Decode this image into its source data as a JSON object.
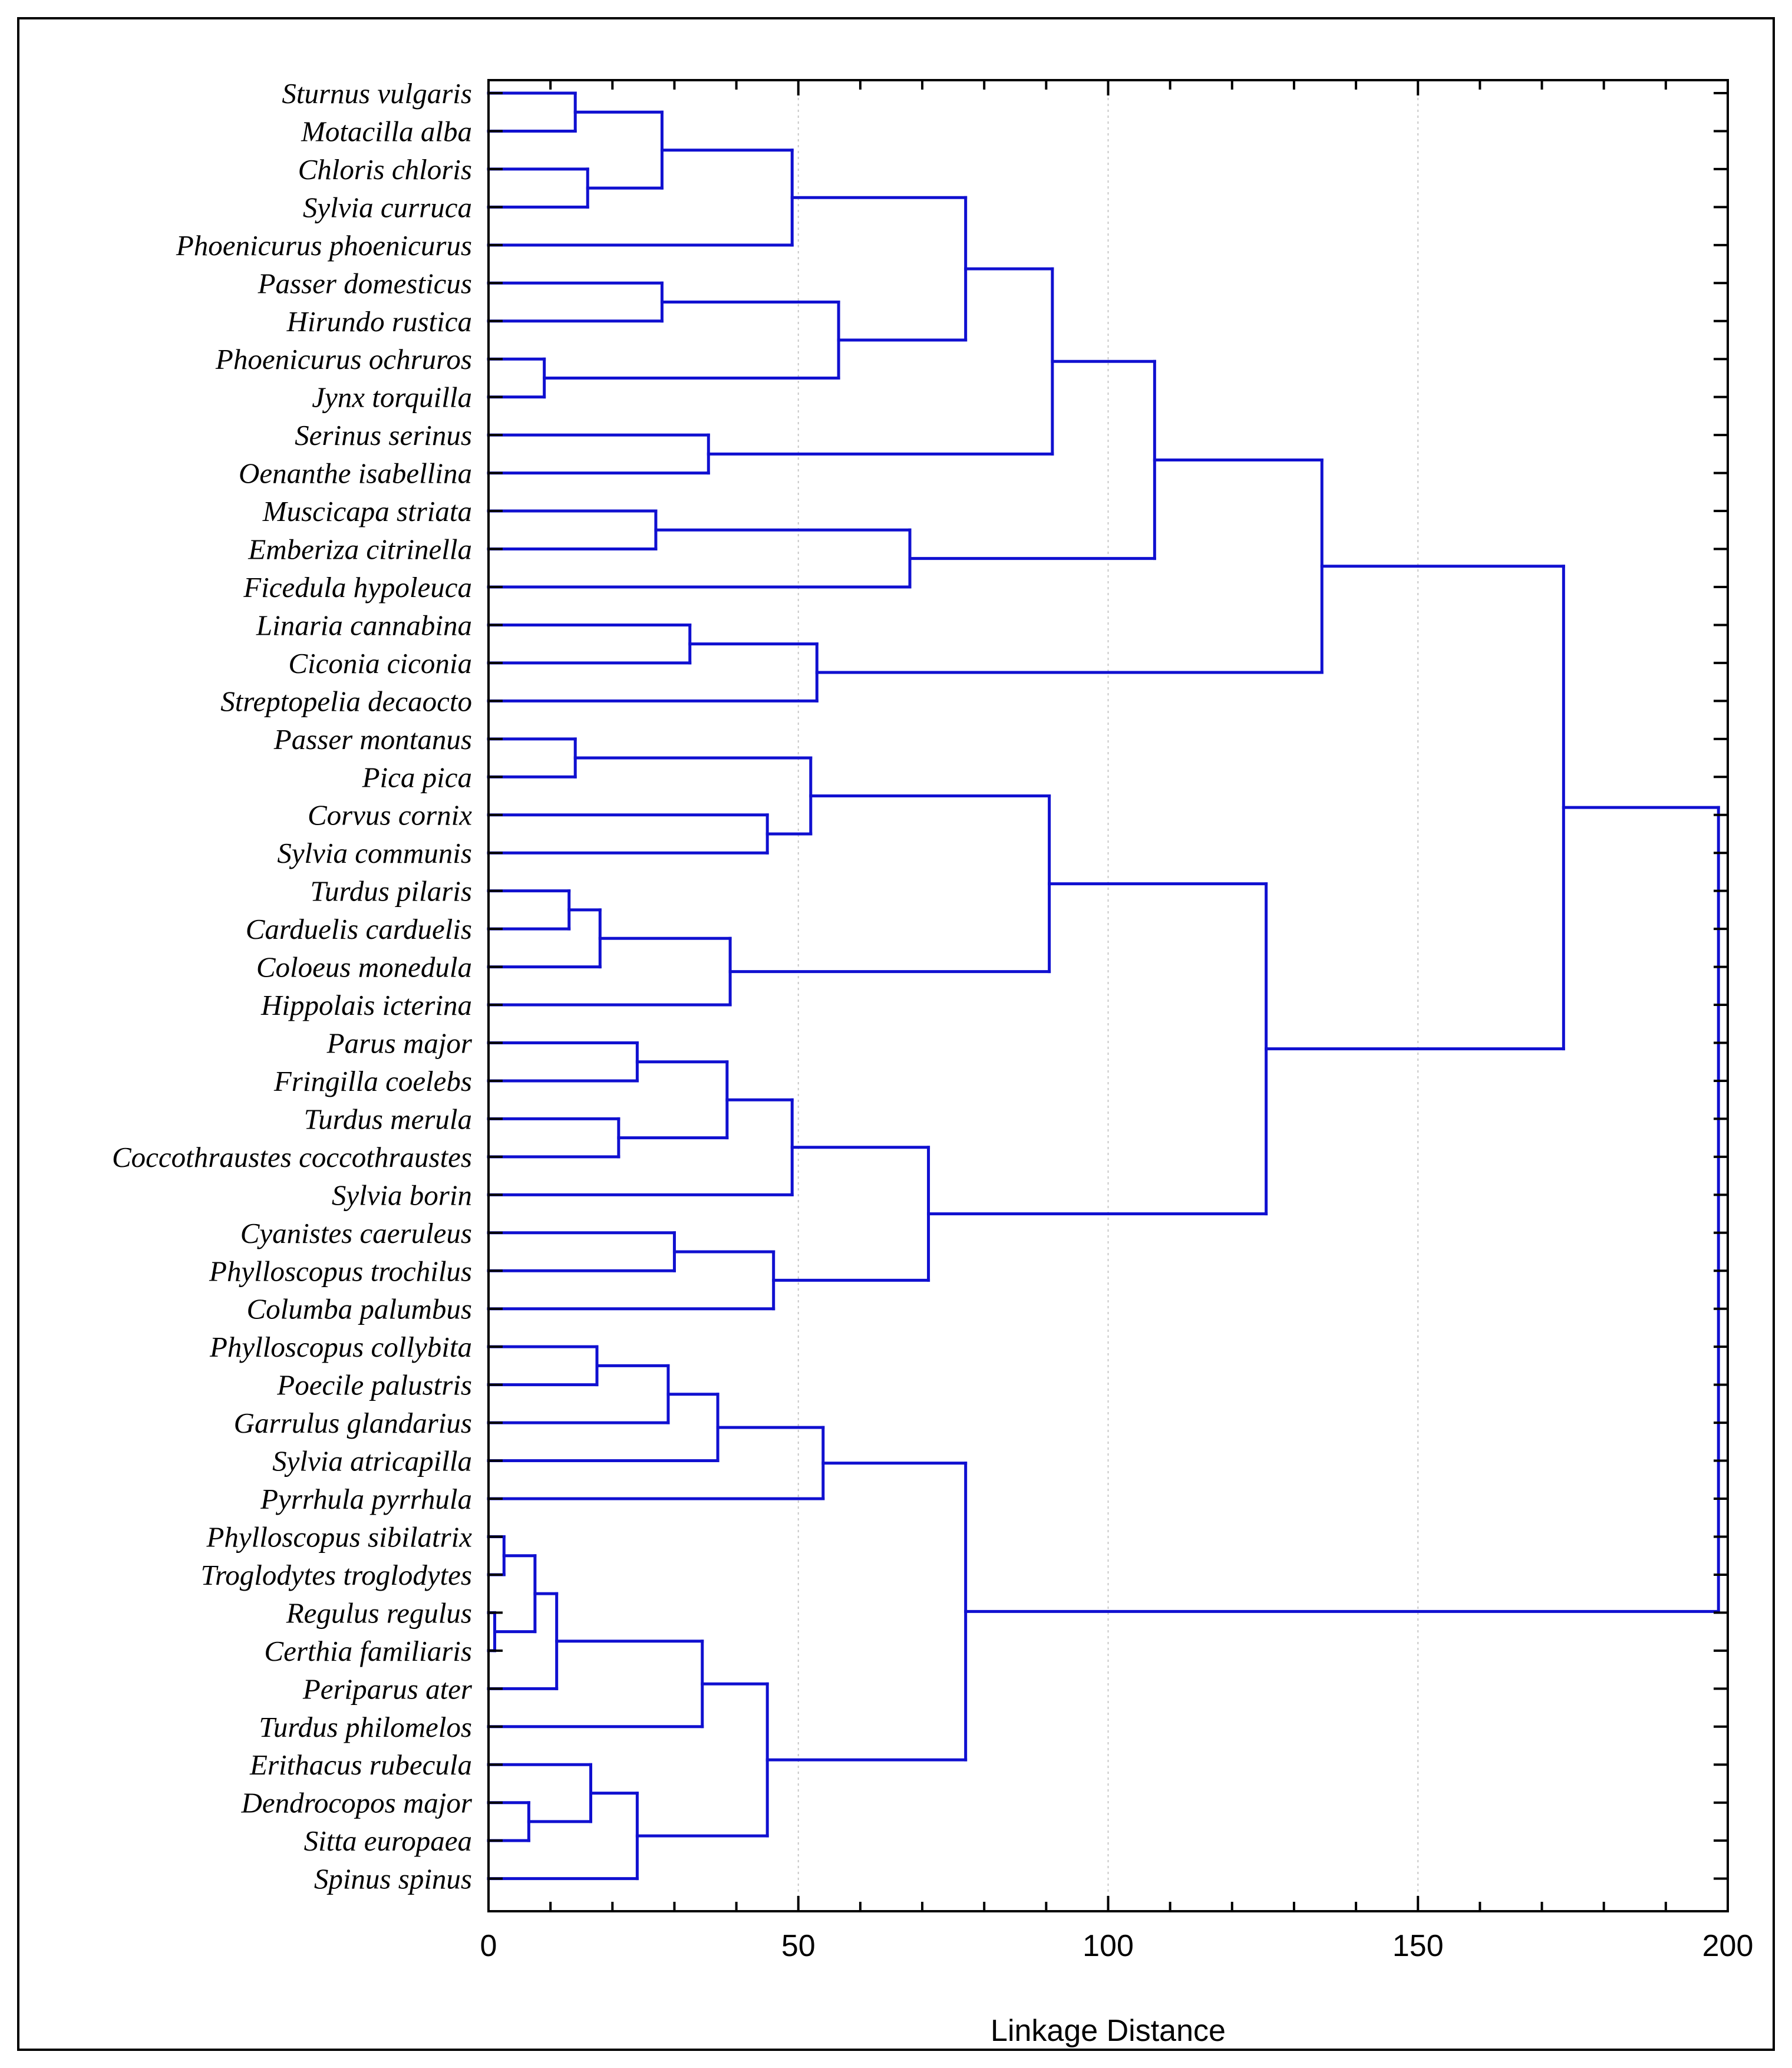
{
  "chart_data": {
    "type": "dendrogram",
    "orientation": "horizontal",
    "title": "",
    "xlabel": "Linkage Distance",
    "ylabel": "",
    "xlim": [
      0,
      200
    ],
    "xticks": [
      0,
      50,
      100,
      150,
      200
    ],
    "grid": true,
    "line_color": "#1010d0",
    "leaves": [
      "Sturnus vulgaris",
      "Motacilla alba",
      "Chloris chloris",
      "Sylvia curruca",
      "Phoenicurus phoenicurus",
      "Passer domesticus",
      "Hirundo rustica",
      "Phoenicurus ochruros",
      "Jynx torquilla",
      "Serinus serinus",
      "Oenanthe isabellina",
      "Muscicapa striata",
      "Emberiza citrinella",
      "Ficedula hypoleuca",
      "Linaria cannabina",
      "Ciconia ciconia",
      "Streptopelia decaocto",
      "Passer montanus",
      "Pica pica",
      "Corvus cornix",
      "Sylvia communis",
      "Turdus pilaris",
      "Carduelis carduelis",
      "Coloeus monedula",
      "Hippolais icterina",
      "Parus major",
      "Fringilla coelebs",
      "Turdus merula",
      "Coccothraustes coccothraustes",
      "Sylvia borin",
      "Cyanistes caeruleus",
      "Phylloscopus trochilus",
      "Columba palumbus",
      "Phylloscopus collybita",
      "Poecile palustris",
      "Garrulus glandarius",
      "Sylvia atricapilla",
      "Pyrrhula pyrrhula",
      "Phylloscopus sibilatrix",
      "Troglodytes troglodytes",
      "Regulus regulus",
      "Certhia familiaris",
      "Periparus ater",
      "Turdus philomelos",
      "Erithacus rubecula",
      "Dendrocopos major",
      "Sitta europaea",
      "Spinus spinus"
    ],
    "merges": [
      {
        "id": "N1",
        "children": [
          "L0",
          "L1"
        ],
        "height": 14
      },
      {
        "id": "N2",
        "children": [
          "L2",
          "L3"
        ],
        "height": 16
      },
      {
        "id": "N3",
        "children": [
          "N1",
          "N2"
        ],
        "height": 28
      },
      {
        "id": "N4",
        "children": [
          "N3",
          "L4"
        ],
        "height": 49
      },
      {
        "id": "N5",
        "children": [
          "L5",
          "L6"
        ],
        "height": 28
      },
      {
        "id": "N6",
        "children": [
          "L7",
          "L8"
        ],
        "height": 9
      },
      {
        "id": "N7",
        "children": [
          "N5",
          "N6"
        ],
        "height": 56.5
      },
      {
        "id": "N8",
        "children": [
          "N4",
          "N7"
        ],
        "height": 77
      },
      {
        "id": "N9",
        "children": [
          "L9",
          "L10"
        ],
        "height": 35.5
      },
      {
        "id": "N10",
        "children": [
          "N8",
          "N9"
        ],
        "height": 91
      },
      {
        "id": "N11",
        "children": [
          "L11",
          "L12"
        ],
        "height": 27
      },
      {
        "id": "N12",
        "children": [
          "N11",
          "L13"
        ],
        "height": 68
      },
      {
        "id": "N13",
        "children": [
          "N10",
          "N12"
        ],
        "height": 107.5
      },
      {
        "id": "N14",
        "children": [
          "L14",
          "L15"
        ],
        "height": 32.5
      },
      {
        "id": "N15",
        "children": [
          "N14",
          "L16"
        ],
        "height": 53
      },
      {
        "id": "N16",
        "children": [
          "N13",
          "N15"
        ],
        "height": 134.5
      },
      {
        "id": "N17",
        "children": [
          "L17",
          "L18"
        ],
        "height": 14
      },
      {
        "id": "N18",
        "children": [
          "L19",
          "L20"
        ],
        "height": 45
      },
      {
        "id": "N19",
        "children": [
          "N17",
          "N18"
        ],
        "height": 52
      },
      {
        "id": "N20",
        "children": [
          "L21",
          "L22"
        ],
        "height": 13
      },
      {
        "id": "N21",
        "children": [
          "N20",
          "L23"
        ],
        "height": 18
      },
      {
        "id": "N22",
        "children": [
          "N21",
          "L24"
        ],
        "height": 39
      },
      {
        "id": "N23",
        "children": [
          "N19",
          "N22"
        ],
        "height": 90.5
      },
      {
        "id": "N24",
        "children": [
          "L25",
          "L26"
        ],
        "height": 24
      },
      {
        "id": "N25",
        "children": [
          "L27",
          "L28"
        ],
        "height": 21
      },
      {
        "id": "N26",
        "children": [
          "N24",
          "N25"
        ],
        "height": 38.5
      },
      {
        "id": "N27",
        "children": [
          "N26",
          "L29"
        ],
        "height": 49
      },
      {
        "id": "N28",
        "children": [
          "L30",
          "L31"
        ],
        "height": 30
      },
      {
        "id": "N29",
        "children": [
          "N28",
          "L32"
        ],
        "height": 46
      },
      {
        "id": "N30",
        "children": [
          "N27",
          "N29"
        ],
        "height": 71
      },
      {
        "id": "N31",
        "children": [
          "N23",
          "N30"
        ],
        "height": 125.5
      },
      {
        "id": "N32",
        "children": [
          "N16",
          "N31"
        ],
        "height": 173.5
      },
      {
        "id": "N33",
        "children": [
          "L33",
          "L34"
        ],
        "height": 17.5
      },
      {
        "id": "N34",
        "children": [
          "N33",
          "L35"
        ],
        "height": 29
      },
      {
        "id": "N35",
        "children": [
          "N34",
          "L36"
        ],
        "height": 37
      },
      {
        "id": "N36",
        "children": [
          "N35",
          "L37"
        ],
        "height": 54
      },
      {
        "id": "N37",
        "children": [
          "L38",
          "L39"
        ],
        "height": 2.5
      },
      {
        "id": "N38",
        "children": [
          "L40",
          "L41"
        ],
        "height": 1
      },
      {
        "id": "N39",
        "children": [
          "N37",
          "N38"
        ],
        "height": 7.5
      },
      {
        "id": "N40",
        "children": [
          "N39",
          "L42"
        ],
        "height": 11
      },
      {
        "id": "N41",
        "children": [
          "N40",
          "L43"
        ],
        "height": 34.5
      },
      {
        "id": "N42",
        "children": [
          "L45",
          "L46"
        ],
        "height": 6.5
      },
      {
        "id": "N43",
        "children": [
          "L44",
          "N42"
        ],
        "height": 16.5
      },
      {
        "id": "N44",
        "children": [
          "N43",
          "L47"
        ],
        "height": 24
      },
      {
        "id": "N45",
        "children": [
          "N41",
          "N44"
        ],
        "height": 45
      },
      {
        "id": "N46",
        "children": [
          "N36",
          "N45"
        ],
        "height": 77
      },
      {
        "id": "N47",
        "children": [
          "N32",
          "N46"
        ],
        "height": 198.5
      }
    ]
  }
}
